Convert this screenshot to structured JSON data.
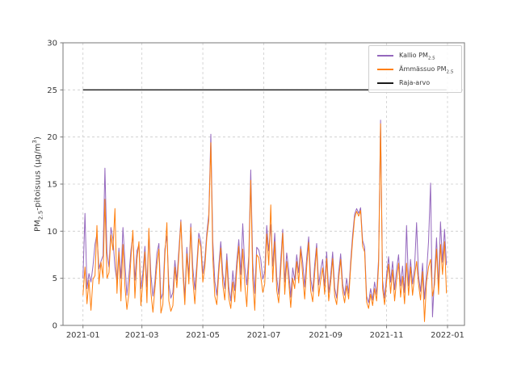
{
  "chart_data": {
    "type": "line",
    "title": "",
    "ylabel_rich": [
      {
        "t": "PM"
      },
      {
        "t": "2.5",
        "sub": true
      },
      {
        "t": "-pitoisuus (µg/m"
      },
      {
        "t": "3",
        "sup": true
      },
      {
        "t": ")"
      }
    ],
    "xlabel": "",
    "x_tick_labels": [
      "2021-01",
      "2021-03",
      "2021-05",
      "2021-07",
      "2021-09",
      "2021-11",
      "2022-01"
    ],
    "x_tick_days": [
      0,
      59,
      120,
      181,
      243,
      304,
      365
    ],
    "y_ticks": [
      0,
      5,
      10,
      15,
      20,
      25,
      30
    ],
    "ylim": [
      0,
      30
    ],
    "xlim_days": [
      -20,
      382
    ],
    "x_start_day": 0,
    "x_step_days": 2,
    "grid": {
      "show": true,
      "style": "dashed",
      "color": "#cccccc"
    },
    "axis_color": "#777777",
    "tick_label_color": "#3a3a3a",
    "legend": {
      "position": "upper-right",
      "items": [
        {
          "id": "kallio",
          "color": "#9467bd",
          "rich": [
            {
              "t": "Kallio PM"
            },
            {
              "t": "2.5",
              "sub": true
            }
          ]
        },
        {
          "id": "ammassuo",
          "color": "#ff7f0e",
          "rich": [
            {
              "t": "Ämmässuo PM"
            },
            {
              "t": "2.5",
              "sub": true
            }
          ]
        },
        {
          "id": "raja-arvo",
          "color": "#1a1a1a",
          "rich": [
            {
              "t": "Raja-arvo"
            }
          ]
        }
      ]
    },
    "series": [
      {
        "id": "kallio",
        "name": "Kallio PM2.5",
        "color": "#9467bd",
        "values": [
          5.0,
          11.9,
          3.9,
          5.5,
          4.6,
          6.3,
          8.6,
          9.7,
          6.0,
          6.8,
          7.4,
          16.7,
          7.8,
          6.2,
          10.4,
          9.2,
          6.2,
          4.6,
          8.2,
          5.0,
          10.4,
          6.6,
          3.2,
          5.3,
          8.0,
          9.6,
          4.8,
          7.9,
          8.6,
          3.9,
          5.6,
          8.4,
          4.1,
          10.0,
          5.4,
          3.1,
          4.6,
          7.6,
          8.7,
          2.8,
          3.4,
          8.1,
          9.5,
          4.4,
          2.9,
          3.5,
          6.9,
          4.8,
          8.0,
          11.2,
          6.3,
          3.0,
          8.3,
          5.2,
          10.8,
          6.1,
          3.8,
          6.6,
          9.8,
          8.9,
          5.5,
          7.0,
          9.8,
          11.8,
          20.3,
          9.0,
          4.7,
          3.2,
          6.4,
          8.9,
          5.5,
          3.9,
          7.6,
          4.1,
          2.6,
          5.8,
          3.7,
          6.8,
          9.1,
          5.4,
          10.8,
          6.2,
          4.3,
          7.4,
          16.5,
          6.6,
          3.4,
          8.3,
          8.0,
          7.0,
          4.9,
          5.7,
          10.6,
          7.9,
          10.7,
          6.3,
          9.8,
          5.1,
          3.3,
          6.9,
          10.2,
          4.6,
          7.7,
          5.9,
          3.0,
          6.1,
          4.8,
          7.5,
          5.6,
          8.4,
          6.7,
          4.1,
          7.2,
          9.4,
          5.0,
          3.6,
          6.5,
          8.7,
          4.3,
          5.9,
          7.0,
          4.2,
          7.8,
          3.5,
          5.3,
          7.8,
          4.0,
          2.9,
          5.6,
          7.6,
          4.4,
          3.2,
          5.0,
          3.4,
          6.8,
          9.6,
          11.8,
          12.4,
          11.9,
          12.5,
          9.0,
          8.3,
          3.1,
          2.4,
          3.9,
          2.7,
          4.6,
          3.3,
          7.1,
          21.8,
          4.8,
          2.9,
          5.4,
          7.3,
          4.6,
          6.8,
          3.8,
          5.9,
          7.5,
          4.2,
          6.3,
          3.5,
          10.6,
          4.2,
          7.0,
          4.4,
          6.1,
          10.9,
          5.3,
          3.6,
          6.6,
          2.8,
          5.5,
          8.9,
          15.1,
          0.9,
          5.2,
          9.3,
          4.1,
          11.0,
          6.7,
          10.2,
          6.4
        ]
      },
      {
        "id": "ammassuo",
        "name": "Ämmässuo PM2.5",
        "color": "#ff7f0e",
        "values": [
          3.2,
          6.2,
          2.3,
          4.8,
          1.6,
          4.9,
          5.3,
          10.6,
          4.4,
          6.7,
          5.1,
          13.4,
          5.0,
          5.6,
          9.6,
          8.0,
          12.4,
          3.4,
          7.8,
          2.6,
          8.6,
          4.1,
          1.7,
          3.4,
          7.2,
          10.1,
          2.9,
          7.0,
          8.9,
          2.1,
          4.7,
          7.8,
          2.4,
          10.3,
          3.5,
          1.4,
          3.8,
          6.4,
          8.1,
          1.3,
          2.2,
          7.4,
          10.9,
          2.6,
          1.5,
          2.1,
          6.2,
          4.0,
          7.3,
          11.0,
          5.6,
          2.2,
          7.6,
          4.4,
          10.4,
          4.8,
          2.3,
          5.9,
          9.2,
          8.3,
          4.6,
          6.2,
          9.3,
          11.2,
          19.4,
          7.2,
          3.1,
          2.2,
          5.7,
          8.2,
          4.3,
          2.7,
          6.9,
          2.9,
          1.8,
          4.6,
          2.5,
          5.9,
          8.4,
          3.6,
          8.1,
          4.4,
          2.0,
          6.6,
          15.4,
          4.8,
          1.6,
          7.5,
          7.2,
          5.2,
          3.5,
          4.4,
          9.7,
          6.4,
          12.8,
          4.6,
          8.9,
          3.7,
          2.4,
          5.8,
          9.8,
          3.3,
          6.8,
          4.7,
          1.9,
          5.0,
          3.9,
          6.8,
          4.5,
          8.1,
          5.3,
          2.8,
          6.3,
          8.8,
          3.7,
          2.5,
          5.6,
          8.2,
          3.1,
          4.8,
          6.1,
          3.3,
          7.1,
          2.6,
          4.5,
          7.1,
          3.1,
          2.2,
          4.9,
          7.0,
          3.6,
          2.4,
          4.2,
          2.8,
          6.2,
          9.0,
          11.4,
          12.1,
          11.6,
          12.2,
          8.4,
          7.8,
          2.5,
          1.8,
          3.3,
          2.1,
          3.9,
          2.6,
          6.4,
          21.4,
          3.9,
          2.2,
          4.7,
          6.5,
          3.4,
          5.9,
          2.6,
          4.8,
          6.6,
          3.0,
          5.2,
          2.3,
          6.6,
          3.2,
          6.2,
          3.2,
          5.2,
          6.8,
          4.4,
          2.7,
          5.7,
          0.4,
          4.6,
          6.2,
          7.0,
          3.1,
          4.3,
          8.1,
          3.3,
          8.6,
          5.4,
          8.9,
          3.4
        ]
      }
    ],
    "limit_line": {
      "name": "Raja-arvo",
      "value": 25,
      "color": "#1a1a1a",
      "span_days": [
        0,
        364
      ]
    }
  }
}
